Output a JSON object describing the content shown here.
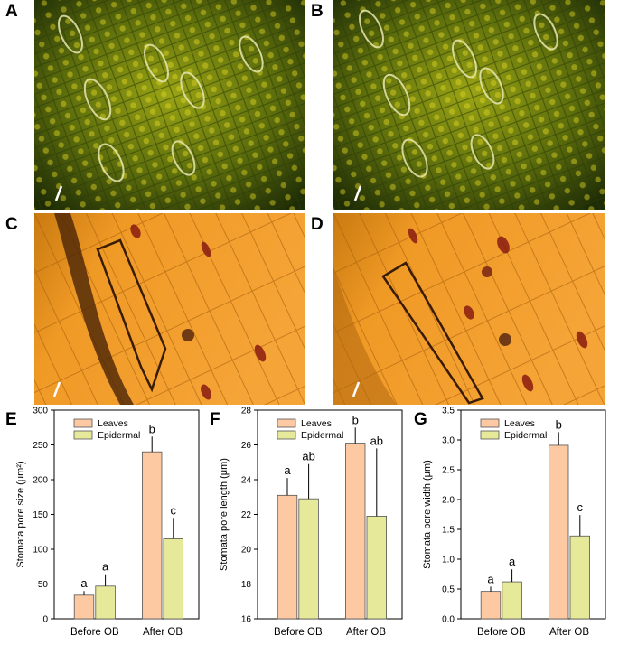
{
  "panels": {
    "A": "A",
    "B": "B",
    "C": "C",
    "D": "D",
    "E": "E",
    "F": "F",
    "G": "G"
  },
  "colors": {
    "leaves": "#fdc9a2",
    "epidermal": "#e6e89a",
    "micro_green_dark": "#2a3a08",
    "micro_green_light": "#b8c218",
    "micro_orange": "#e8921c"
  },
  "chart_data": [
    {
      "type": "bar",
      "panel": "E",
      "categories": [
        "Before OB",
        "After OB"
      ],
      "series": [
        {
          "name": "Leaves",
          "values": [
            34,
            240
          ],
          "errors": [
            6,
            22
          ],
          "letters": [
            "a",
            "b"
          ]
        },
        {
          "name": "Epidermal",
          "values": [
            47,
            115
          ],
          "errors": [
            17,
            30
          ],
          "letters": [
            "a",
            "c"
          ]
        }
      ],
      "ylabel": "Stomata pore size (μm²)",
      "ylim": [
        0,
        300
      ],
      "yticks": [
        0,
        50,
        100,
        150,
        200,
        250,
        300
      ],
      "legend": "top-left"
    },
    {
      "type": "bar",
      "panel": "F",
      "categories": [
        "Before OB",
        "After OB"
      ],
      "series": [
        {
          "name": "Leaves",
          "values": [
            23.1,
            26.1
          ],
          "errors": [
            1.0,
            0.9
          ],
          "letters": [
            "a",
            "b"
          ]
        },
        {
          "name": "Epidermal",
          "values": [
            22.9,
            21.9
          ],
          "errors": [
            2.0,
            3.9
          ],
          "letters": [
            "ab",
            "ab"
          ]
        }
      ],
      "ylabel": "Stomata pore length (μm)",
      "ylim": [
        16,
        28
      ],
      "yticks": [
        16,
        18,
        20,
        22,
        24,
        26,
        28
      ],
      "legend": "top-left"
    },
    {
      "type": "bar",
      "panel": "G",
      "categories": [
        "Before OB",
        "After OB"
      ],
      "series": [
        {
          "name": "Leaves",
          "values": [
            0.46,
            2.91
          ],
          "errors": [
            0.08,
            0.22
          ],
          "letters": [
            "a",
            "b"
          ]
        },
        {
          "name": "Epidermal",
          "values": [
            0.62,
            1.39
          ],
          "errors": [
            0.21,
            0.35
          ],
          "letters": [
            "a",
            "c"
          ]
        }
      ],
      "ylabel": "Stomata pore width (μm)",
      "ylim": [
        0,
        3.5
      ],
      "yticks": [
        0.0,
        0.5,
        1.0,
        1.5,
        2.0,
        2.5,
        3.0,
        3.5
      ],
      "legend": "top-left"
    }
  ]
}
